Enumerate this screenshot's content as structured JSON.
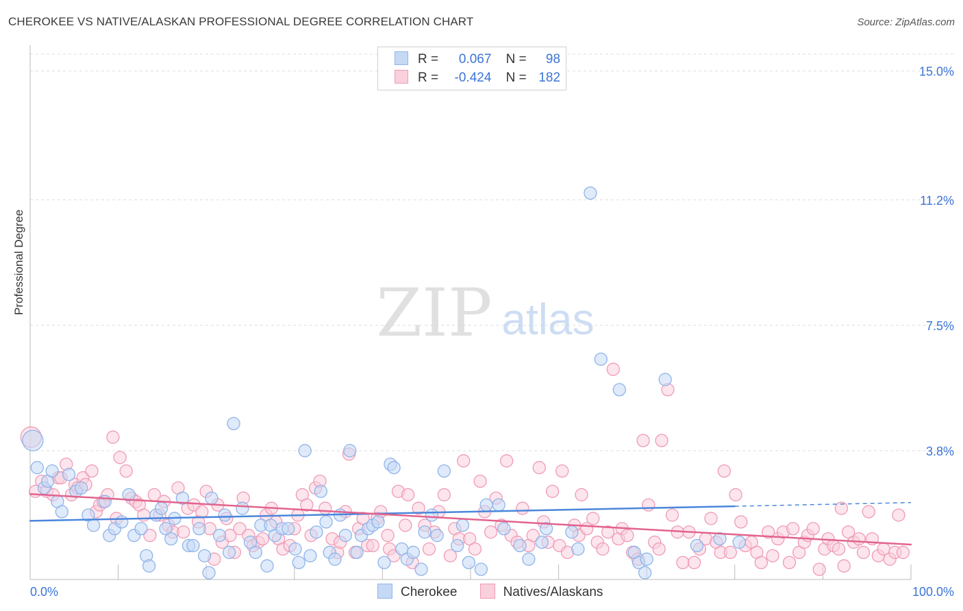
{
  "header": {
    "title": "CHEROKEE VS NATIVE/ALASKAN PROFESSIONAL DEGREE CORRELATION CHART",
    "source": "Source: ZipAtlas.com"
  },
  "watermark": {
    "zip": "ZIP",
    "atlas": "atlas"
  },
  "legend": {
    "rows": [
      {
        "r_label": "R =",
        "r_value": "0.067",
        "n_label": "N =",
        "n_value": "98",
        "color": "#8fb4ea",
        "fill": "#c5d9f5"
      },
      {
        "r_label": "R =",
        "r_value": "-0.424",
        "n_label": "N =",
        "n_value": "182",
        "color": "#ef9bb6",
        "fill": "#f9d0dc"
      }
    ]
  },
  "bottom_legend": [
    {
      "label": "Cherokee",
      "color": "#8fb4ea",
      "fill": "#c5d9f5"
    },
    {
      "label": "Natives/Alaskans",
      "color": "#ef9bb6",
      "fill": "#f9d0dc"
    }
  ],
  "chart_data": {
    "type": "scatter",
    "title": "CHEROKEE VS NATIVE/ALASKAN PROFESSIONAL DEGREE CORRELATION CHART",
    "xlabel": "",
    "ylabel": "Professional Degree",
    "xlim": [
      0,
      100
    ],
    "ylim": [
      0,
      15.5
    ],
    "x_tick_labels": [
      "0.0%",
      "100.0%"
    ],
    "y_ticks": [
      3.8,
      7.5,
      11.2,
      15.0
    ],
    "y_tick_labels": [
      "3.8%",
      "7.5%",
      "11.2%",
      "15.0%"
    ],
    "grid": true,
    "series": [
      {
        "name": "Cherokee",
        "color": "#4a86db",
        "stroke": "#8fb4ea",
        "fill": "#c5d9f5",
        "trend": {
          "x": [
            0,
            80
          ],
          "y": [
            1.73,
            2.16
          ],
          "dashed_to": [
            100,
            2.27
          ]
        },
        "points": [
          [
            0.3,
            4.1
          ],
          [
            0.8,
            3.3
          ],
          [
            1.6,
            2.7
          ],
          [
            2.0,
            2.9
          ],
          [
            2.5,
            3.2
          ],
          [
            3.1,
            2.3
          ],
          [
            3.6,
            2.0
          ],
          [
            4.4,
            3.1
          ],
          [
            5.2,
            2.6
          ],
          [
            5.8,
            2.7
          ],
          [
            6.6,
            1.9
          ],
          [
            7.2,
            1.6
          ],
          [
            8.5,
            2.3
          ],
          [
            9.0,
            1.3
          ],
          [
            9.6,
            1.5
          ],
          [
            10.4,
            1.7
          ],
          [
            11.2,
            2.5
          ],
          [
            11.8,
            1.3
          ],
          [
            12.6,
            1.5
          ],
          [
            13.2,
            0.7
          ],
          [
            13.5,
            0.4
          ],
          [
            14.3,
            1.9
          ],
          [
            14.9,
            2.1
          ],
          [
            15.4,
            1.5
          ],
          [
            16.0,
            1.2
          ],
          [
            16.4,
            1.8
          ],
          [
            17.3,
            2.4
          ],
          [
            18.0,
            1.0
          ],
          [
            18.5,
            1.0
          ],
          [
            19.2,
            1.5
          ],
          [
            19.8,
            0.7
          ],
          [
            20.3,
            0.2
          ],
          [
            20.6,
            2.4
          ],
          [
            21.5,
            1.3
          ],
          [
            22.1,
            1.9
          ],
          [
            22.6,
            0.8
          ],
          [
            23.1,
            4.6
          ],
          [
            24.1,
            2.1
          ],
          [
            25.0,
            1.1
          ],
          [
            25.6,
            0.8
          ],
          [
            26.2,
            1.6
          ],
          [
            26.9,
            0.4
          ],
          [
            27.3,
            1.6
          ],
          [
            27.8,
            1.3
          ],
          [
            28.6,
            1.5
          ],
          [
            29.3,
            1.5
          ],
          [
            30.1,
            0.9
          ],
          [
            30.5,
            0.5
          ],
          [
            31.2,
            3.8
          ],
          [
            31.8,
            0.7
          ],
          [
            32.5,
            1.4
          ],
          [
            33.0,
            2.6
          ],
          [
            33.6,
            1.7
          ],
          [
            34.0,
            0.8
          ],
          [
            34.6,
            0.6
          ],
          [
            35.2,
            1.9
          ],
          [
            35.8,
            1.3
          ],
          [
            36.3,
            3.8
          ],
          [
            37.1,
            0.8
          ],
          [
            37.6,
            1.3
          ],
          [
            38.4,
            1.5
          ],
          [
            38.9,
            1.6
          ],
          [
            39.5,
            1.7
          ],
          [
            40.2,
            0.5
          ],
          [
            40.9,
            3.4
          ],
          [
            41.3,
            3.3
          ],
          [
            42.2,
            0.9
          ],
          [
            42.8,
            0.6
          ],
          [
            43.5,
            0.8
          ],
          [
            44.4,
            0.3
          ],
          [
            44.8,
            1.4
          ],
          [
            45.6,
            1.9
          ],
          [
            46.2,
            1.3
          ],
          [
            47.0,
            3.2
          ],
          [
            48.5,
            1.0
          ],
          [
            49.1,
            1.6
          ],
          [
            49.8,
            0.5
          ],
          [
            51.2,
            0.3
          ],
          [
            51.8,
            2.2
          ],
          [
            53.2,
            2.2
          ],
          [
            53.8,
            1.5
          ],
          [
            55.6,
            1.0
          ],
          [
            56.6,
            0.6
          ],
          [
            58.1,
            1.1
          ],
          [
            58.6,
            1.5
          ],
          [
            61.5,
            1.4
          ],
          [
            62.2,
            0.9
          ],
          [
            63.6,
            11.4
          ],
          [
            64.8,
            6.5
          ],
          [
            66.9,
            5.6
          ],
          [
            68.6,
            0.8
          ],
          [
            69.1,
            0.5
          ],
          [
            70.0,
            0.6
          ],
          [
            72.1,
            5.9
          ],
          [
            75.7,
            1.0
          ],
          [
            78.3,
            1.2
          ],
          [
            80.5,
            1.1
          ],
          [
            69.8,
            0.2
          ]
        ]
      },
      {
        "name": "Natives/Alaskans",
        "color": "#e2638d",
        "stroke": "#ef9bb6",
        "fill": "#f9d0dc",
        "trend": {
          "x": [
            0,
            100
          ],
          "y": [
            2.52,
            1.03
          ]
        },
        "points": [
          [
            0.1,
            4.2
          ],
          [
            0.6,
            2.6
          ],
          [
            1.3,
            2.9
          ],
          [
            1.9,
            2.6
          ],
          [
            2.6,
            2.5
          ],
          [
            3.2,
            3.0
          ],
          [
            3.5,
            3.0
          ],
          [
            4.1,
            3.4
          ],
          [
            4.7,
            2.5
          ],
          [
            5.1,
            2.8
          ],
          [
            5.4,
            2.7
          ],
          [
            6.0,
            3.0
          ],
          [
            6.3,
            2.8
          ],
          [
            7.0,
            3.2
          ],
          [
            7.5,
            2.0
          ],
          [
            7.9,
            2.2
          ],
          [
            8.3,
            2.3
          ],
          [
            8.8,
            2.5
          ],
          [
            9.4,
            4.2
          ],
          [
            9.8,
            1.8
          ],
          [
            10.2,
            3.6
          ],
          [
            10.9,
            3.2
          ],
          [
            11.5,
            2.4
          ],
          [
            12.0,
            2.3
          ],
          [
            12.4,
            2.2
          ],
          [
            12.9,
            1.9
          ],
          [
            13.6,
            1.3
          ],
          [
            14.1,
            2.5
          ],
          [
            14.7,
            1.9
          ],
          [
            15.2,
            2.3
          ],
          [
            15.7,
            1.6
          ],
          [
            16.2,
            1.4
          ],
          [
            16.8,
            2.7
          ],
          [
            17.4,
            1.4
          ],
          [
            17.9,
            2.1
          ],
          [
            18.6,
            2.2
          ],
          [
            19.1,
            1.7
          ],
          [
            19.5,
            2.0
          ],
          [
            20.0,
            2.6
          ],
          [
            20.4,
            1.5
          ],
          [
            20.9,
            0.6
          ],
          [
            21.3,
            2.2
          ],
          [
            21.8,
            1.1
          ],
          [
            22.3,
            1.8
          ],
          [
            22.7,
            1.3
          ],
          [
            23.2,
            0.8
          ],
          [
            23.8,
            1.5
          ],
          [
            24.2,
            2.4
          ],
          [
            24.8,
            1.3
          ],
          [
            25.3,
            1.0
          ],
          [
            25.9,
            1.1
          ],
          [
            26.4,
            1.2
          ],
          [
            26.8,
            1.9
          ],
          [
            27.4,
            2.1
          ],
          [
            27.9,
            1.7
          ],
          [
            28.2,
            1.2
          ],
          [
            28.7,
            0.9
          ],
          [
            29.5,
            1.0
          ],
          [
            30.0,
            1.5
          ],
          [
            30.4,
            1.9
          ],
          [
            30.9,
            2.5
          ],
          [
            31.4,
            2.2
          ],
          [
            31.9,
            1.3
          ],
          [
            32.4,
            2.7
          ],
          [
            32.9,
            2.9
          ],
          [
            33.5,
            2.1
          ],
          [
            34.3,
            1.2
          ],
          [
            34.9,
            0.8
          ],
          [
            35.2,
            1.1
          ],
          [
            35.8,
            2.0
          ],
          [
            36.2,
            3.7
          ],
          [
            36.9,
            0.8
          ],
          [
            37.3,
            1.5
          ],
          [
            37.8,
            1.8
          ],
          [
            38.3,
            1.0
          ],
          [
            38.9,
            1.0
          ],
          [
            39.4,
            1.8
          ],
          [
            39.8,
            2.0
          ],
          [
            40.6,
            1.3
          ],
          [
            40.8,
            0.9
          ],
          [
            41.3,
            0.7
          ],
          [
            41.8,
            2.6
          ],
          [
            42.6,
            1.6
          ],
          [
            42.9,
            2.5
          ],
          [
            43.4,
            0.5
          ],
          [
            44.1,
            2.1
          ],
          [
            44.8,
            1.6
          ],
          [
            45.3,
            0.9
          ],
          [
            45.9,
            1.4
          ],
          [
            46.4,
            2.0
          ],
          [
            47.0,
            2.5
          ],
          [
            47.7,
            0.7
          ],
          [
            48.2,
            1.5
          ],
          [
            48.7,
            1.2
          ],
          [
            49.2,
            3.5
          ],
          [
            49.9,
            1.2
          ],
          [
            50.5,
            0.9
          ],
          [
            51.1,
            2.9
          ],
          [
            51.6,
            2.0
          ],
          [
            52.3,
            1.4
          ],
          [
            52.9,
            2.4
          ],
          [
            53.5,
            1.6
          ],
          [
            54.1,
            3.5
          ],
          [
            54.6,
            1.3
          ],
          [
            55.3,
            1.1
          ],
          [
            55.9,
            2.1
          ],
          [
            56.6,
            1.0
          ],
          [
            57.1,
            1.3
          ],
          [
            57.8,
            3.3
          ],
          [
            58.3,
            1.7
          ],
          [
            58.8,
            1.1
          ],
          [
            59.3,
            2.6
          ],
          [
            60.1,
            1.0
          ],
          [
            60.4,
            3.2
          ],
          [
            61.0,
            0.8
          ],
          [
            61.8,
            1.6
          ],
          [
            62.3,
            1.3
          ],
          [
            62.6,
            2.5
          ],
          [
            63.2,
            1.5
          ],
          [
            63.9,
            1.8
          ],
          [
            64.4,
            1.1
          ],
          [
            65.0,
            0.9
          ],
          [
            65.6,
            1.4
          ],
          [
            66.2,
            6.2
          ],
          [
            66.8,
            1.2
          ],
          [
            67.2,
            1.5
          ],
          [
            67.8,
            1.3
          ],
          [
            68.4,
            0.8
          ],
          [
            69.0,
            0.6
          ],
          [
            69.6,
            4.1
          ],
          [
            70.2,
            2.2
          ],
          [
            70.9,
            1.1
          ],
          [
            71.4,
            0.9
          ],
          [
            71.7,
            4.1
          ],
          [
            72.4,
            5.6
          ],
          [
            72.9,
            1.9
          ],
          [
            73.5,
            1.4
          ],
          [
            74.1,
            0.5
          ],
          [
            74.8,
            1.4
          ],
          [
            75.4,
            0.5
          ],
          [
            76.0,
            0.9
          ],
          [
            76.7,
            1.2
          ],
          [
            77.3,
            1.8
          ],
          [
            77.9,
            1.1
          ],
          [
            78.4,
            0.8
          ],
          [
            78.8,
            3.2
          ],
          [
            79.5,
            0.8
          ],
          [
            80.1,
            2.5
          ],
          [
            80.7,
            1.7
          ],
          [
            81.2,
            1.0
          ],
          [
            81.9,
            1.1
          ],
          [
            82.5,
            0.8
          ],
          [
            83.0,
            0.5
          ],
          [
            83.8,
            1.4
          ],
          [
            84.3,
            0.7
          ],
          [
            84.9,
            1.2
          ],
          [
            85.5,
            1.4
          ],
          [
            86.2,
            0.5
          ],
          [
            86.6,
            1.5
          ],
          [
            87.3,
            0.8
          ],
          [
            87.9,
            1.1
          ],
          [
            88.3,
            1.3
          ],
          [
            88.9,
            1.5
          ],
          [
            89.6,
            0.3
          ],
          [
            90.2,
            0.9
          ],
          [
            90.6,
            1.2
          ],
          [
            91.2,
            1.0
          ],
          [
            91.8,
            0.9
          ],
          [
            92.4,
            0.4
          ],
          [
            92.9,
            1.4
          ],
          [
            93.5,
            1.1
          ],
          [
            94.1,
            1.2
          ],
          [
            94.6,
            0.8
          ],
          [
            95.2,
            2.0
          ],
          [
            95.6,
            1.2
          ],
          [
            96.3,
            0.7
          ],
          [
            96.9,
            0.9
          ],
          [
            97.6,
            0.6
          ],
          [
            98.2,
            0.8
          ],
          [
            98.6,
            1.9
          ],
          [
            99.1,
            0.8
          ],
          [
            92.1,
            2.1
          ]
        ]
      }
    ]
  }
}
